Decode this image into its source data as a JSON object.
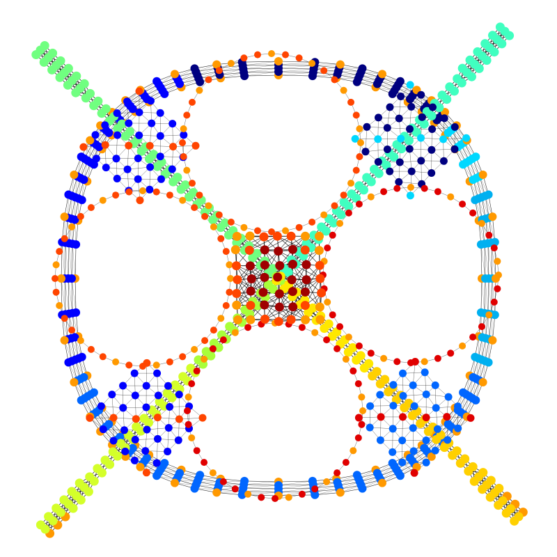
{
  "figure": {
    "kind": "network-graph",
    "background": "#ffffff",
    "edge_color": "#000000",
    "node_color_scale": "jet",
    "structure": {
      "outer_ring": true,
      "inner_loops": 4,
      "center_hub": true,
      "diagonal_arms": 4
    },
    "palette": {
      "dark_blue": "#000080",
      "blue": "#0000ff",
      "azure": "#0066ff",
      "sky": "#00b0f0",
      "cyan": "#00d8ff",
      "aquamarine": "#40ffc0",
      "mint": "#70ff80",
      "lime": "#a8ff3a",
      "yellow_green": "#d4ff2a",
      "yellow": "#ffe800",
      "gold": "#ffd000",
      "orange": "#ff9900",
      "orange_red": "#ff4500",
      "red": "#e00000",
      "dark_red": "#a00000"
    }
  }
}
